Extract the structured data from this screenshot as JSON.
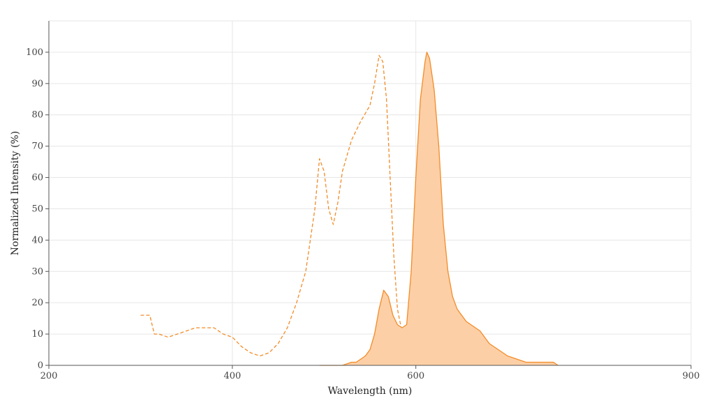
{
  "chart_data": {
    "type": "area",
    "xlabel": "Wavelength (nm)",
    "ylabel": "Normalized Intensity (%)",
    "xlim": [
      200,
      900
    ],
    "ylim": [
      0,
      110
    ],
    "x_ticks": [
      200,
      400,
      600,
      900
    ],
    "y_ticks": [
      0,
      10,
      20,
      30,
      40,
      50,
      60,
      70,
      80,
      90,
      100
    ],
    "grid": true,
    "legend": "none",
    "colors": {
      "line": "#f28c28",
      "fill": "#fdcfa6",
      "grid": "#e6e6e6",
      "axis": "#555555"
    },
    "series": [
      {
        "style": "dashed",
        "fill": false,
        "x": [
          300,
          310,
          315,
          320,
          330,
          340,
          350,
          360,
          370,
          380,
          390,
          400,
          410,
          420,
          430,
          440,
          450,
          460,
          470,
          480,
          490,
          495,
          500,
          505,
          510,
          515,
          520,
          530,
          540,
          550,
          555,
          560,
          564,
          568,
          572,
          576,
          580,
          584,
          588,
          592,
          596,
          600,
          604,
          608,
          612,
          616,
          620,
          625,
          630,
          640,
          650,
          660,
          670,
          675
        ],
        "y": [
          16,
          16,
          10,
          10,
          9,
          10,
          11,
          12,
          12,
          12,
          10,
          9,
          6,
          4,
          3,
          4,
          7,
          12,
          20,
          30,
          50,
          66,
          62,
          50,
          45,
          52,
          62,
          72,
          78,
          83,
          90,
          99,
          97,
          85,
          60,
          35,
          18,
          12,
          12,
          13,
          14,
          16,
          17,
          15,
          13,
          10,
          7,
          4,
          2,
          1,
          1,
          1,
          1,
          0
        ]
      },
      {
        "style": "solid",
        "fill": true,
        "x": [
          495,
          520,
          530,
          535,
          540,
          545,
          550,
          555,
          560,
          565,
          570,
          575,
          580,
          585,
          590,
          595,
          600,
          605,
          610,
          612,
          615,
          620,
          625,
          630,
          635,
          640,
          645,
          650,
          655,
          660,
          665,
          670,
          675,
          680,
          685,
          690,
          695,
          700,
          710,
          720,
          730,
          740,
          750,
          755
        ],
        "y": [
          0,
          0,
          1,
          1,
          2,
          3,
          5,
          10,
          18,
          24,
          22,
          16,
          13,
          12,
          13,
          30,
          60,
          85,
          97,
          100,
          98,
          88,
          70,
          45,
          30,
          22,
          18,
          16,
          14,
          13,
          12,
          11,
          9,
          7,
          6,
          5,
          4,
          3,
          2,
          1,
          1,
          1,
          1,
          0
        ]
      }
    ]
  }
}
